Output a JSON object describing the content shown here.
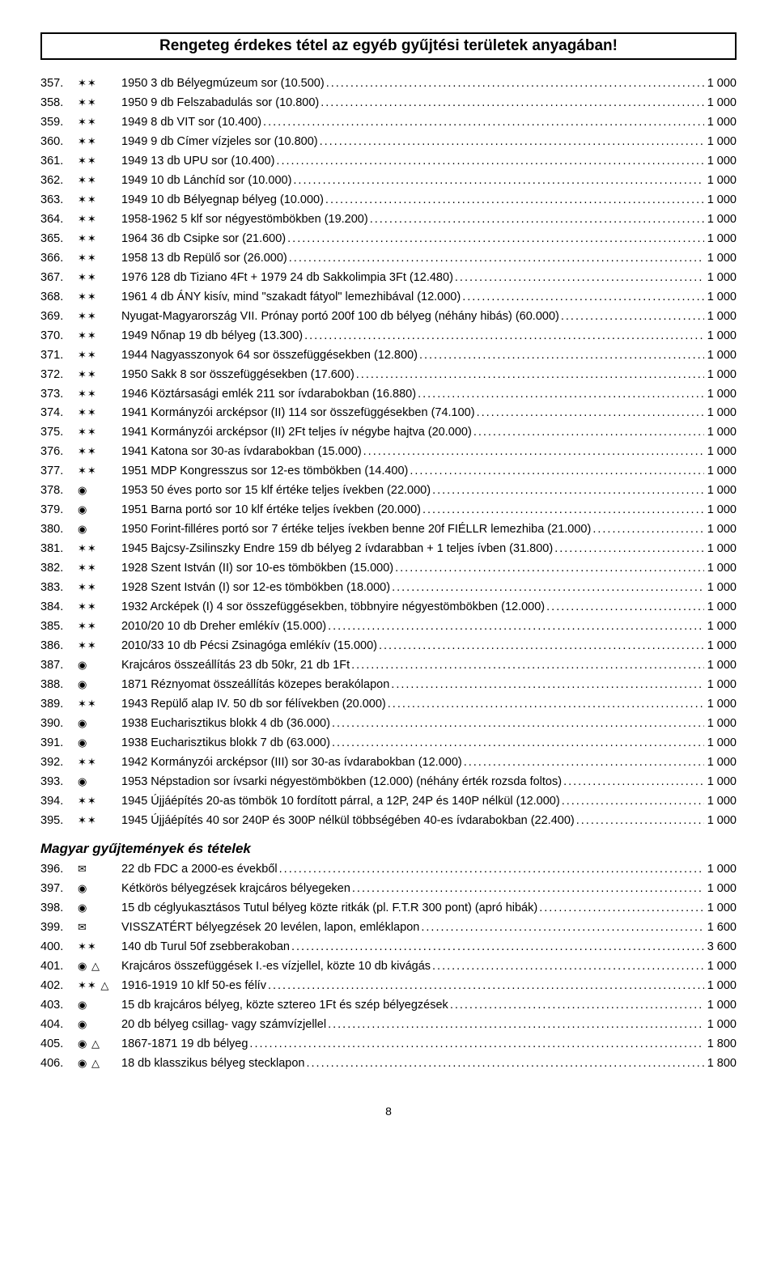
{
  "title": "Rengeteg érdekes tétel az egyéb gyűjtési területek anyagában!",
  "section2": "Magyar gyűjtemények és tételek",
  "pageNumber": "8",
  "symbols": {
    "dblstar": "✶✶",
    "circdot": "◉",
    "env": "✉",
    "cdtri": "◉ △",
    "dstri": "✶✶ △"
  },
  "rows1": [
    {
      "n": "357.",
      "s": "dblstar",
      "d": "1950 3 db Bélyegmúzeum sor (10.500)",
      "p": "1 000"
    },
    {
      "n": "358.",
      "s": "dblstar",
      "d": "1950 9 db Felszabadulás sor (10.800)",
      "p": "1 000"
    },
    {
      "n": "359.",
      "s": "dblstar",
      "d": "1949 8 db VIT sor (10.400)",
      "p": "1 000"
    },
    {
      "n": "360.",
      "s": "dblstar",
      "d": "1949 9 db Címer vízjeles sor (10.800)",
      "p": "1 000"
    },
    {
      "n": "361.",
      "s": "dblstar",
      "d": "1949 13 db UPU sor (10.400)",
      "p": "1 000"
    },
    {
      "n": "362.",
      "s": "dblstar",
      "d": "1949 10 db Lánchíd sor (10.000)",
      "p": "1 000"
    },
    {
      "n": "363.",
      "s": "dblstar",
      "d": "1949 10 db Bélyegnap bélyeg (10.000)",
      "p": "1 000"
    },
    {
      "n": "364.",
      "s": "dblstar",
      "d": "1958-1962 5 klf sor négyestömbökben (19.200)",
      "p": "1 000"
    },
    {
      "n": "365.",
      "s": "dblstar",
      "d": "1964 36 db Csipke sor (21.600)",
      "p": "1 000"
    },
    {
      "n": "366.",
      "s": "dblstar",
      "d": "1958 13 db Repülő sor (26.000)",
      "p": "1 000"
    },
    {
      "n": "367.",
      "s": "dblstar",
      "d": "1976 128 db Tiziano 4Ft + 1979 24 db Sakkolimpia 3Ft (12.480)",
      "p": "1 000"
    },
    {
      "n": "368.",
      "s": "dblstar",
      "d": "1961 4 db ÁNY kisív, mind \"szakadt fátyol\" lemezhibával (12.000)",
      "p": "1 000"
    },
    {
      "n": "369.",
      "s": "dblstar",
      "d": "Nyugat-Magyarország VII. Prónay portó 200f 100 db bélyeg (néhány hibás) (60.000)",
      "p": "1 000"
    },
    {
      "n": "370.",
      "s": "dblstar",
      "d": "1949 Nőnap 19 db bélyeg (13.300)",
      "p": "1 000"
    },
    {
      "n": "371.",
      "s": "dblstar",
      "d": "1944 Nagyasszonyok 64 sor összefüggésekben (12.800)",
      "p": "1 000"
    },
    {
      "n": "372.",
      "s": "dblstar",
      "d": "1950 Sakk 8 sor összefüggésekben (17.600)",
      "p": "1 000"
    },
    {
      "n": "373.",
      "s": "dblstar",
      "d": "1946 Köztársasági emlék 211 sor ívdarabokban (16.880)",
      "p": "1 000"
    },
    {
      "n": "374.",
      "s": "dblstar",
      "d": "1941 Kormányzói arcképsor (II) 114 sor összefüggésekben (74.100)",
      "p": "1 000"
    },
    {
      "n": "375.",
      "s": "dblstar",
      "d": "1941 Kormányzói arcképsor (II) 2Ft teljes ív négybe hajtva (20.000)",
      "p": "1 000"
    },
    {
      "n": "376.",
      "s": "dblstar",
      "d": "1941 Katona sor 30-as ívdarabokban (15.000)",
      "p": "1 000"
    },
    {
      "n": "377.",
      "s": "dblstar",
      "d": "1951 MDP Kongresszus sor 12-es tömbökben (14.400)",
      "p": "1 000"
    },
    {
      "n": "378.",
      "s": "circdot",
      "d": "1953 50 éves porto sor 15 klf értéke teljes ívekben (22.000)",
      "p": "1 000"
    },
    {
      "n": "379.",
      "s": "circdot",
      "d": "1951 Barna portó sor 10 klf értéke teljes ívekben (20.000)",
      "p": "1 000"
    },
    {
      "n": "380.",
      "s": "circdot",
      "d": "1950 Forint-filléres portó sor 7 értéke teljes ívekben benne 20f FIÉLLR lemezhiba (21.000)",
      "p": "1 000"
    },
    {
      "n": "381.",
      "s": "dblstar",
      "d": "1945 Bajcsy-Zsilinszky Endre 159 db bélyeg 2 ívdarabban + 1 teljes ívben (31.800)",
      "p": "1 000"
    },
    {
      "n": "382.",
      "s": "dblstar",
      "d": "1928 Szent István (II) sor 10-es tömbökben (15.000)",
      "p": "1 000"
    },
    {
      "n": "383.",
      "s": "dblstar",
      "d": "1928 Szent István (I) sor 12-es tömbökben (18.000)",
      "p": "1 000"
    },
    {
      "n": "384.",
      "s": "dblstar",
      "d": "1932 Arcképek (I) 4 sor összefüggésekben, többnyire négyestömbökben (12.000)",
      "p": "1 000"
    },
    {
      "n": "385.",
      "s": "dblstar",
      "d": "2010/20 10 db Dreher emlékív (15.000)",
      "p": "1 000"
    },
    {
      "n": "386.",
      "s": "dblstar",
      "d": "2010/33 10 db Pécsi Zsinagóga emlékív (15.000)",
      "p": "1 000"
    },
    {
      "n": "387.",
      "s": "circdot",
      "d": "Krajcáros összeállítás 23 db 50kr, 21 db 1Ft",
      "p": "1 000"
    },
    {
      "n": "388.",
      "s": "circdot",
      "d": "1871 Réznyomat összeállítás közepes berakólapon",
      "p": "1 000"
    },
    {
      "n": "389.",
      "s": "dblstar",
      "d": "1943 Repülő alap IV. 50 db sor félívekben (20.000)",
      "p": "1 000"
    },
    {
      "n": "390.",
      "s": "circdot",
      "d": "1938 Eucharisztikus blokk 4 db (36.000)",
      "p": "1 000"
    },
    {
      "n": "391.",
      "s": "circdot",
      "d": "1938 Eucharisztikus blokk 7 db (63.000)",
      "p": "1 000"
    },
    {
      "n": "392.",
      "s": "dblstar",
      "d": "1942 Kormányzói arcképsor (III) sor 30-as ívdarabokban (12.000)",
      "p": "1 000"
    },
    {
      "n": "393.",
      "s": "circdot",
      "d": "1953 Népstadion sor ívsarki négyestömbökben (12.000) (néhány érték rozsda foltos)",
      "p": "1 000"
    },
    {
      "n": "394.",
      "s": "dblstar",
      "d": "1945 Újjáépítés 20-as tömbök 10 fordított párral, a 12P, 24P és 140P nélkül (12.000)",
      "p": "1 000"
    },
    {
      "n": "395.",
      "s": "dblstar",
      "d": "1945 Újjáépítés 40 sor 240P és 300P nélkül többségében 40-es ívdarabokban (22.400)",
      "p": "1 000"
    }
  ],
  "rows2": [
    {
      "n": "396.",
      "s": "env",
      "d": "22 db FDC a 2000-es évekből",
      "p": "1 000"
    },
    {
      "n": "397.",
      "s": "circdot",
      "d": "Kétkörös bélyegzések krajcáros bélyegeken",
      "p": "1 000"
    },
    {
      "n": "398.",
      "s": "circdot",
      "d": "15 db céglyukasztásos Tutul bélyeg közte ritkák (pl. F.T.R 300 pont) (apró hibák)",
      "p": "1 000"
    },
    {
      "n": "399.",
      "s": "env",
      "d": "VISSZATÉRT bélyegzések 20 levélen, lapon, emléklapon",
      "p": "1 600"
    },
    {
      "n": "400.",
      "s": "dblstar",
      "d": "140 db Turul 50f zsebberakoban",
      "p": "3 600"
    },
    {
      "n": "401.",
      "s": "cdtri",
      "d": "Krajcáros összefüggések I.-es vízjellel, közte 10 db kivágás",
      "p": "1 000"
    },
    {
      "n": "402.",
      "s": "dstri",
      "d": "1916-1919 10 klf 50-es félív",
      "p": "1 000"
    },
    {
      "n": "403.",
      "s": "circdot",
      "d": "15 db krajcáros bélyeg, közte sztereo 1Ft és szép bélyegzések",
      "p": "1 000"
    },
    {
      "n": "404.",
      "s": "circdot",
      "d": "20 db bélyeg csillag- vagy számvízjellel",
      "p": "1 000"
    },
    {
      "n": "405.",
      "s": "cdtri",
      "d": "1867-1871 19 db bélyeg",
      "p": "1 800"
    },
    {
      "n": "406.",
      "s": "cdtri",
      "d": "18 db klasszikus bélyeg stecklapon",
      "p": "1 800"
    }
  ]
}
